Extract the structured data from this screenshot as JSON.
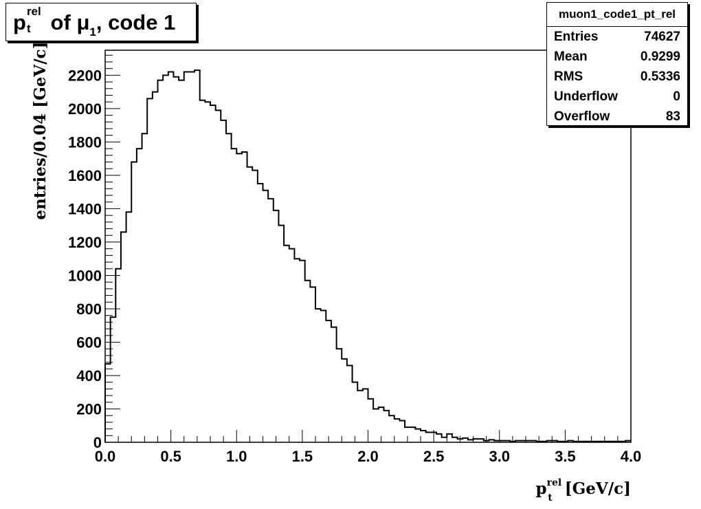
{
  "title": {
    "main": "p",
    "sup": "rel",
    "sub": "t",
    "mid": " of ",
    "mu": "μ",
    "mu_sub": "1",
    "tail": ", code 1"
  },
  "stats": {
    "name": "muon1_code1_pt_rel",
    "rows": [
      {
        "label": "Entries",
        "value": "74627"
      },
      {
        "label": "Mean",
        "value": "0.9299"
      },
      {
        "label": "RMS",
        "value": "0.5336"
      },
      {
        "label": "Underflow",
        "value": "0"
      },
      {
        "label": "Overflow",
        "value": "83"
      }
    ]
  },
  "chart_data": {
    "type": "histogram",
    "ylabel": "entries/0.04 [GeV/c]",
    "xlabel": {
      "main": "p",
      "sup": "rel",
      "sub": "t",
      "unit": " [GeV/c]"
    },
    "xlim": [
      0,
      4
    ],
    "ylim": [
      0,
      2350
    ],
    "bin_width": 0.04,
    "x_ticks": [
      "0.0",
      "0.5",
      "1.0",
      "1.5",
      "2.0",
      "2.5",
      "3.0",
      "3.5",
      "4.0"
    ],
    "y_ticks": [
      "0",
      "200",
      "400",
      "600",
      "800",
      "1000",
      "1200",
      "1400",
      "1600",
      "1800",
      "2000",
      "2200"
    ],
    "values": [
      470,
      750,
      1040,
      1260,
      1380,
      1680,
      1760,
      1850,
      2060,
      2100,
      2170,
      2200,
      2220,
      2190,
      2170,
      2220,
      2220,
      2230,
      2050,
      2040,
      2020,
      1990,
      1930,
      1850,
      1760,
      1730,
      1740,
      1650,
      1630,
      1550,
      1510,
      1460,
      1390,
      1300,
      1180,
      1160,
      1100,
      1090,
      970,
      930,
      800,
      790,
      730,
      690,
      560,
      500,
      460,
      360,
      310,
      320,
      260,
      200,
      210,
      190,
      160,
      140,
      130,
      90,
      90,
      80,
      70,
      60,
      60,
      50,
      30,
      50,
      30,
      20,
      25,
      15,
      20,
      20,
      10,
      15,
      10,
      10,
      10,
      5,
      10,
      10,
      10,
      10,
      5,
      5,
      10,
      10,
      5,
      5,
      10,
      5,
      5,
      5,
      5,
      5,
      5,
      5,
      5,
      5,
      5,
      10
    ]
  }
}
